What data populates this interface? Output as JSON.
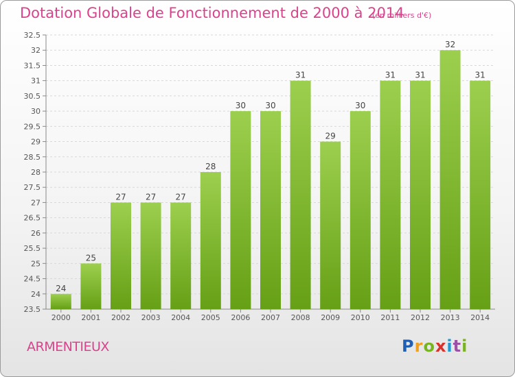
{
  "header": {
    "title": "Dotation Globale de Fonctionnement de 2000 à 2014",
    "subtitle": "(en milliers d'€)"
  },
  "footer": {
    "commune": "ARMENTIEUX",
    "logo_text": [
      "P",
      "r",
      "o",
      "x",
      "i",
      "t",
      "i"
    ],
    "logo_colors": [
      "#1f5fb5",
      "#f0a020",
      "#78b41e",
      "#d9302b",
      "#1f9ad6",
      "#9b4fa5",
      "#78b41e"
    ]
  },
  "chart_data": {
    "type": "bar",
    "title": "Dotation Globale de Fonctionnement de 2000 à 2014",
    "subtitle": "(en milliers d'€)",
    "xlabel": "",
    "ylabel": "",
    "categories": [
      "2000",
      "2001",
      "2002",
      "2003",
      "2004",
      "2005",
      "2006",
      "2007",
      "2008",
      "2009",
      "2010",
      "2011",
      "2012",
      "2013",
      "2014"
    ],
    "values": [
      24,
      25,
      27,
      27,
      27,
      28,
      30,
      30,
      31,
      29,
      30,
      31,
      31,
      32,
      31
    ],
    "ylim": [
      23.5,
      32.5
    ],
    "yticks": [
      23.5,
      24,
      24.5,
      25,
      25.5,
      26,
      26.5,
      27,
      27.5,
      28,
      28.5,
      29,
      29.5,
      30,
      30.5,
      31,
      31.5,
      32,
      32.5
    ],
    "grid": true,
    "bar_color_top": "#9ccf4e",
    "bar_color_bottom": "#66a016"
  }
}
